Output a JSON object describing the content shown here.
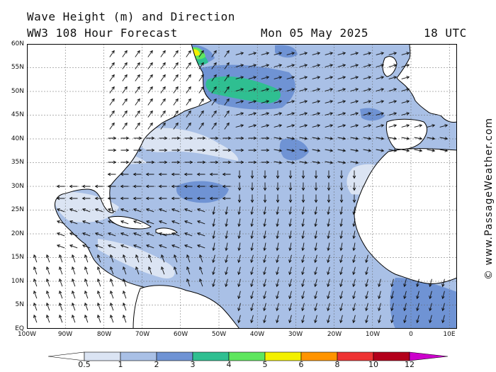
{
  "header": {
    "title": "Wave Height (m) and Direction",
    "subtitle": "WW3 108 Hour Forecast",
    "datetime": "Mon 05 May 2025",
    "utc": "18 UTC"
  },
  "credit": "© www.PassageWeather.com",
  "map": {
    "region": "North Atlantic",
    "lat_labels": [
      "60N",
      "55N",
      "50N",
      "45N",
      "40N",
      "35N",
      "30N",
      "25N",
      "20N",
      "15N",
      "10N",
      "5N",
      "EQ"
    ],
    "lon_labels": [
      "100W",
      "90W",
      "80W",
      "70W",
      "60W",
      "50W",
      "40W",
      "30W",
      "20W",
      "10W",
      "0",
      "10E"
    ],
    "lat_range": [
      0,
      60
    ],
    "lon_range": [
      -100,
      12
    ],
    "colors": {
      "land": "#ffffff",
      "ocean_1_2": "#a9c0e6",
      "ocean_05_1": "#dbe4f3",
      "ocean_2_3": "#6f93d4",
      "band_3_4": "#2fbf91",
      "band_4_5": "#5ee65e",
      "band_5_6": "#f3f000"
    }
  },
  "colorbar": {
    "labels": [
      "0.5",
      "1",
      "2",
      "3",
      "4",
      "5",
      "6",
      "8",
      "10",
      "12"
    ],
    "colors": [
      "#ffffff",
      "#dbe4f3",
      "#a9c0e6",
      "#6f93d4",
      "#2fbf91",
      "#5ee65e",
      "#f3f000",
      "#ff9400",
      "#ee3333",
      "#b3001b",
      "#cc00cc"
    ]
  }
}
